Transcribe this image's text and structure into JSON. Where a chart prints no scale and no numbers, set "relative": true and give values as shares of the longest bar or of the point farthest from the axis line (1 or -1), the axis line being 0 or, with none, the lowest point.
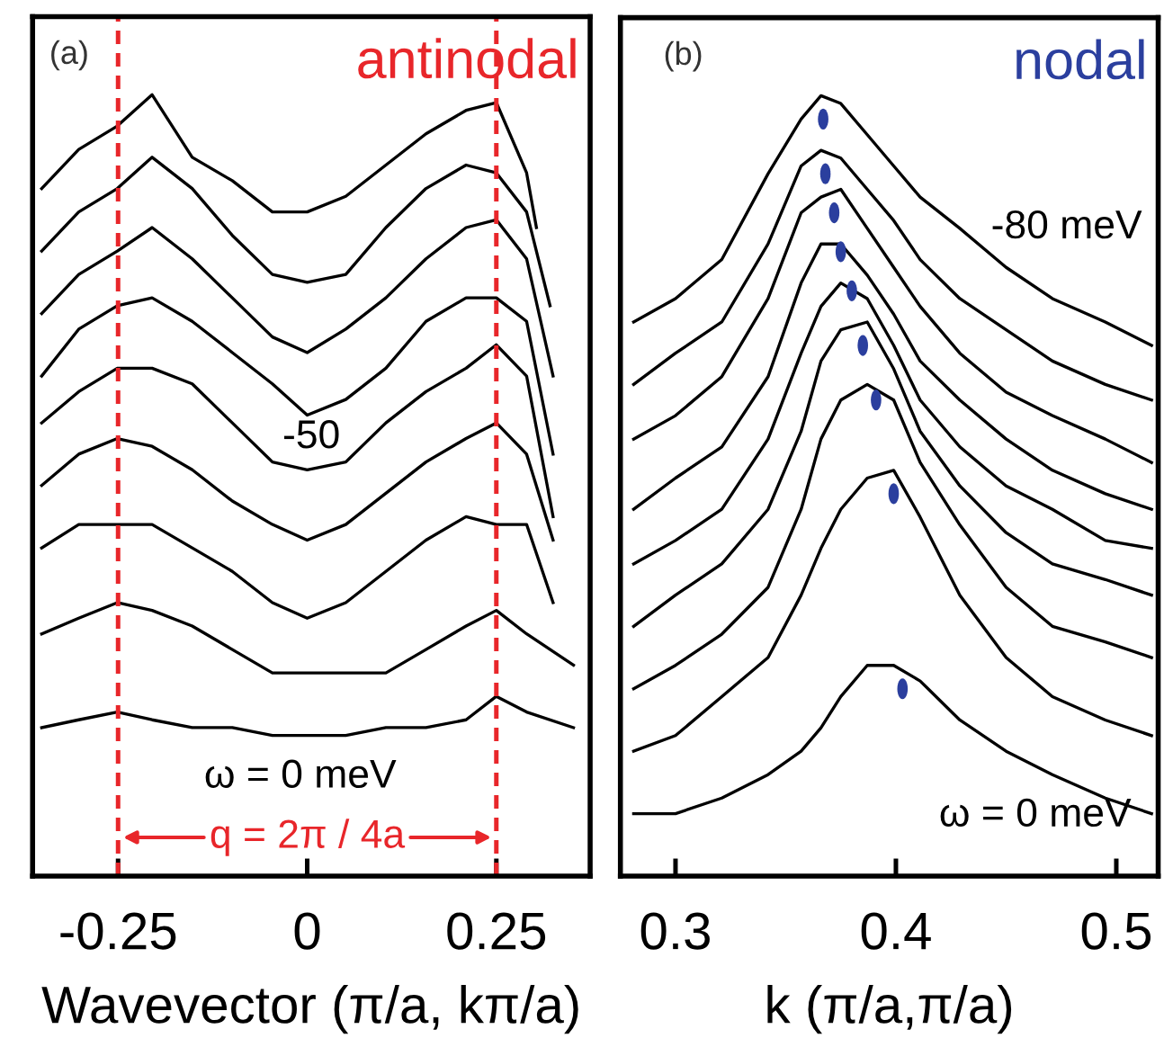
{
  "chart_data": [
    {
      "type": "line",
      "title": "antinodal",
      "relative": true,
      "xlabel": "Wavevector (π/a, kπ/a)",
      "xlim": [
        -0.363,
        0.374
      ],
      "xticks": [
        -0.25,
        0,
        0.25
      ],
      "tick_labels": "x",
      "series": [
        {
          "color": "#000000",
          "x": [
            -0.351,
            -0.302,
            -0.251,
            -0.205,
            -0.152,
            -0.099,
            -0.046,
            0,
            0.051,
            0.104,
            0.157,
            0.21,
            0.25,
            0.29,
            0.303
          ],
          "values": [
            0.88,
            0.93,
            0.96,
            1.0,
            0.92,
            0.89,
            0.85,
            0.85,
            0.87,
            0.91,
            0.95,
            0.98,
            0.99,
            0.9,
            0.83
          ]
        },
        {
          "color": "#000000",
          "x": [
            -0.351,
            -0.302,
            -0.251,
            -0.205,
            -0.152,
            -0.099,
            -0.046,
            0,
            0.051,
            0.104,
            0.157,
            0.21,
            0.25,
            0.29,
            0.321
          ],
          "values": [
            0.8,
            0.85,
            0.88,
            0.92,
            0.88,
            0.82,
            0.77,
            0.76,
            0.77,
            0.83,
            0.88,
            0.91,
            0.9,
            0.85,
            0.73
          ]
        },
        {
          "color": "#000000",
          "x": [
            -0.351,
            -0.302,
            -0.251,
            -0.205,
            -0.152,
            -0.099,
            -0.046,
            0,
            0.051,
            0.104,
            0.157,
            0.21,
            0.25,
            0.29,
            0.325
          ],
          "values": [
            0.72,
            0.77,
            0.8,
            0.83,
            0.79,
            0.74,
            0.69,
            0.67,
            0.7,
            0.74,
            0.79,
            0.83,
            0.84,
            0.79,
            0.64
          ]
        },
        {
          "color": "#000000",
          "x": [
            -0.351,
            -0.302,
            -0.251,
            -0.205,
            -0.152,
            -0.099,
            -0.046,
            0,
            0.051,
            0.104,
            0.157,
            0.21,
            0.25,
            0.29,
            0.325
          ],
          "values": [
            0.64,
            0.7,
            0.73,
            0.74,
            0.71,
            0.67,
            0.63,
            0.59,
            0.61,
            0.65,
            0.71,
            0.74,
            0.74,
            0.71,
            0.54
          ]
        },
        {
          "color": "#000000",
          "x": [
            -0.351,
            -0.302,
            -0.251,
            -0.205,
            -0.152,
            -0.099,
            -0.046,
            0,
            0.051,
            0.104,
            0.157,
            0.21,
            0.25,
            0.29,
            0.325
          ],
          "values": [
            0.58,
            0.62,
            0.65,
            0.65,
            0.63,
            0.58,
            0.53,
            0.52,
            0.53,
            0.58,
            0.62,
            0.65,
            0.68,
            0.64,
            0.46
          ]
        },
        {
          "color": "#000000",
          "x": [
            -0.351,
            -0.302,
            -0.251,
            -0.205,
            -0.152,
            -0.099,
            -0.046,
            0,
            0.051,
            0.104,
            0.157,
            0.21,
            0.25,
            0.29,
            0.325
          ],
          "values": [
            0.5,
            0.54,
            0.56,
            0.55,
            0.52,
            0.48,
            0.45,
            0.43,
            0.45,
            0.49,
            0.53,
            0.56,
            0.58,
            0.54,
            0.43
          ]
        },
        {
          "color": "#000000",
          "x": [
            -0.351,
            -0.302,
            -0.251,
            -0.205,
            -0.152,
            -0.099,
            -0.046,
            0,
            0.051,
            0.104,
            0.157,
            0.21,
            0.25,
            0.29,
            0.325
          ],
          "values": [
            0.42,
            0.45,
            0.45,
            0.45,
            0.42,
            0.39,
            0.35,
            0.33,
            0.35,
            0.39,
            0.43,
            0.46,
            0.45,
            0.45,
            0.35
          ]
        },
        {
          "color": "#000000",
          "x": [
            -0.351,
            -0.302,
            -0.251,
            -0.205,
            -0.152,
            -0.099,
            -0.046,
            0,
            0.051,
            0.104,
            0.157,
            0.21,
            0.25,
            0.29,
            0.352
          ],
          "values": [
            0.31,
            0.33,
            0.35,
            0.34,
            0.32,
            0.29,
            0.26,
            0.26,
            0.26,
            0.26,
            0.29,
            0.32,
            0.34,
            0.31,
            0.27
          ]
        },
        {
          "color": "#000000",
          "x": [
            -0.351,
            -0.302,
            -0.251,
            -0.205,
            -0.152,
            -0.099,
            -0.046,
            0,
            0.051,
            0.104,
            0.157,
            0.21,
            0.25,
            0.29,
            0.352
          ],
          "values": [
            0.19,
            0.2,
            0.21,
            0.2,
            0.19,
            0.19,
            0.18,
            0.18,
            0.18,
            0.19,
            0.19,
            0.2,
            0.23,
            0.21,
            0.19
          ]
        }
      ],
      "ref_lines": [
        {
          "axis": "x",
          "value": -0.25,
          "color": "#e8262a",
          "line_style": "dashed"
        },
        {
          "axis": "x",
          "value": 0.25,
          "color": "#e8262a",
          "line_style": "dashed"
        }
      ],
      "annotations": [
        "(a)",
        "-50",
        "ω = 0 meV",
        "q = 2π / 4a"
      ]
    },
    {
      "type": "line",
      "title": "nodal",
      "relative": true,
      "xlabel": "k (π/a,π/a)",
      "xlim": [
        0.275,
        0.519
      ],
      "xticks": [
        0.3,
        0.4,
        0.5
      ],
      "tick_labels": "x",
      "series": [
        {
          "color": "#000000",
          "x": [
            0.281,
            0.3,
            0.321,
            0.342,
            0.357,
            0.366,
            0.375,
            0.387,
            0.399,
            0.411,
            0.429,
            0.45,
            0.471,
            0.495,
            0.516
          ],
          "values": [
            0.71,
            0.74,
            0.79,
            0.9,
            0.97,
            1.0,
            0.99,
            0.95,
            0.91,
            0.87,
            0.83,
            0.78,
            0.74,
            0.71,
            0.68
          ]
        },
        {
          "color": "#000000",
          "x": [
            0.281,
            0.3,
            0.321,
            0.342,
            0.357,
            0.366,
            0.375,
            0.387,
            0.399,
            0.411,
            0.429,
            0.45,
            0.471,
            0.495,
            0.516
          ],
          "values": [
            0.63,
            0.67,
            0.71,
            0.81,
            0.91,
            0.93,
            0.92,
            0.88,
            0.84,
            0.79,
            0.74,
            0.7,
            0.66,
            0.63,
            0.61
          ]
        },
        {
          "color": "#000000",
          "x": [
            0.281,
            0.3,
            0.321,
            0.342,
            0.357,
            0.366,
            0.375,
            0.387,
            0.399,
            0.411,
            0.429,
            0.45,
            0.471,
            0.495,
            0.516
          ],
          "values": [
            0.56,
            0.59,
            0.64,
            0.74,
            0.85,
            0.87,
            0.88,
            0.83,
            0.78,
            0.73,
            0.67,
            0.62,
            0.59,
            0.56,
            0.53
          ]
        },
        {
          "color": "#000000",
          "x": [
            0.281,
            0.3,
            0.321,
            0.342,
            0.357,
            0.366,
            0.375,
            0.387,
            0.399,
            0.411,
            0.429,
            0.45,
            0.471,
            0.495,
            0.516
          ],
          "values": [
            0.47,
            0.51,
            0.55,
            0.64,
            0.76,
            0.81,
            0.81,
            0.77,
            0.72,
            0.66,
            0.61,
            0.56,
            0.52,
            0.49,
            0.47
          ]
        },
        {
          "color": "#000000",
          "x": [
            0.281,
            0.3,
            0.321,
            0.342,
            0.357,
            0.366,
            0.375,
            0.387,
            0.399,
            0.411,
            0.429,
            0.45,
            0.471,
            0.495,
            0.516
          ],
          "values": [
            0.4,
            0.43,
            0.47,
            0.56,
            0.67,
            0.73,
            0.76,
            0.74,
            0.68,
            0.61,
            0.55,
            0.5,
            0.47,
            0.43,
            0.42
          ]
        },
        {
          "color": "#000000",
          "x": [
            0.281,
            0.3,
            0.321,
            0.342,
            0.357,
            0.366,
            0.375,
            0.387,
            0.399,
            0.411,
            0.429,
            0.45,
            0.471,
            0.495,
            0.516
          ],
          "values": [
            0.32,
            0.36,
            0.4,
            0.47,
            0.57,
            0.66,
            0.7,
            0.71,
            0.65,
            0.57,
            0.5,
            0.44,
            0.4,
            0.38,
            0.36
          ]
        },
        {
          "color": "#000000",
          "x": [
            0.281,
            0.3,
            0.321,
            0.342,
            0.357,
            0.366,
            0.375,
            0.387,
            0.399,
            0.411,
            0.429,
            0.45,
            0.471,
            0.495,
            0.516
          ],
          "values": [
            0.24,
            0.27,
            0.31,
            0.37,
            0.47,
            0.56,
            0.61,
            0.63,
            0.61,
            0.53,
            0.45,
            0.37,
            0.32,
            0.3,
            0.28
          ]
        },
        {
          "color": "#000000",
          "x": [
            0.281,
            0.3,
            0.321,
            0.342,
            0.357,
            0.366,
            0.375,
            0.387,
            0.399,
            0.411,
            0.429,
            0.45,
            0.471,
            0.495,
            0.516
          ],
          "values": [
            0.16,
            0.18,
            0.23,
            0.28,
            0.36,
            0.42,
            0.47,
            0.51,
            0.52,
            0.46,
            0.36,
            0.28,
            0.23,
            0.2,
            0.18
          ]
        },
        {
          "color": "#000000",
          "x": [
            0.281,
            0.3,
            0.321,
            0.342,
            0.357,
            0.366,
            0.375,
            0.387,
            0.399,
            0.411,
            0.429,
            0.45,
            0.471,
            0.495,
            0.516
          ],
          "values": [
            0.08,
            0.08,
            0.1,
            0.13,
            0.16,
            0.19,
            0.23,
            0.27,
            0.27,
            0.25,
            0.2,
            0.16,
            0.13,
            0.1,
            0.08
          ]
        },
        {
          "type": "scatter",
          "color": "#2b3f9e",
          "x": [
            0.367,
            0.368,
            0.372,
            0.375,
            0.38,
            0.385,
            0.391,
            0.399,
            0.403
          ],
          "values": [
            0.97,
            0.9,
            0.85,
            0.8,
            0.75,
            0.68,
            0.61,
            0.49,
            0.24
          ]
        }
      ],
      "annotations": [
        "(b)",
        "-80 meV",
        "ω = 0 meV"
      ]
    }
  ]
}
